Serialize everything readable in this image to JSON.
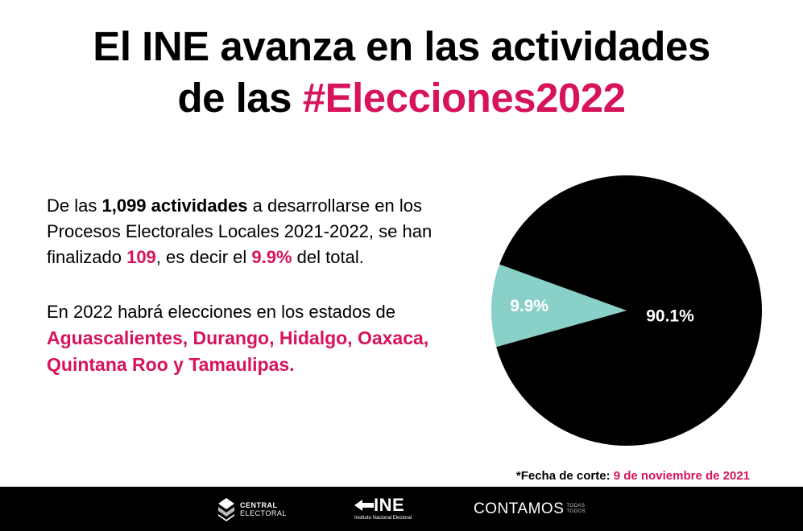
{
  "title": {
    "line1": "El INE avanza en las actividades",
    "line2_prefix": "de las ",
    "line2_highlight": "#Elecciones2022"
  },
  "paragraph1": {
    "p1": "De las ",
    "bold_total": "1,099 actividades",
    "p2": " a desarrollarse en los Procesos Electorales Locales 2021-2022, se han  finalizado ",
    "finished": "109",
    "p3": ", es decir el ",
    "percent": "9.9%",
    "p4": " del total."
  },
  "paragraph2": {
    "intro": "En 2022 habrá elecciones en los estados de",
    "states": "Aguascalientes, Durango, Hidalgo, Oaxaca, Quintana Roo y Tamaulipas."
  },
  "chart_data": {
    "type": "pie",
    "slices": [
      {
        "label": "9.9%",
        "value": 9.9,
        "color": "#88d0c8"
      },
      {
        "label": "90.1%",
        "value": 90.1,
        "color": "#000000"
      }
    ]
  },
  "footnote": {
    "label": "*Fecha de corte: ",
    "date": "9 de noviembre de 2021"
  },
  "footer": {
    "central_line1": "CENTRAL",
    "central_line2": "ELECTORAL",
    "ine_big": "INE",
    "ine_small": "Instituto Nacional Electoral",
    "contamos_big": "CONTAMOS",
    "contamos_sub1": "TODAS",
    "contamos_sub2": "TODOS"
  }
}
